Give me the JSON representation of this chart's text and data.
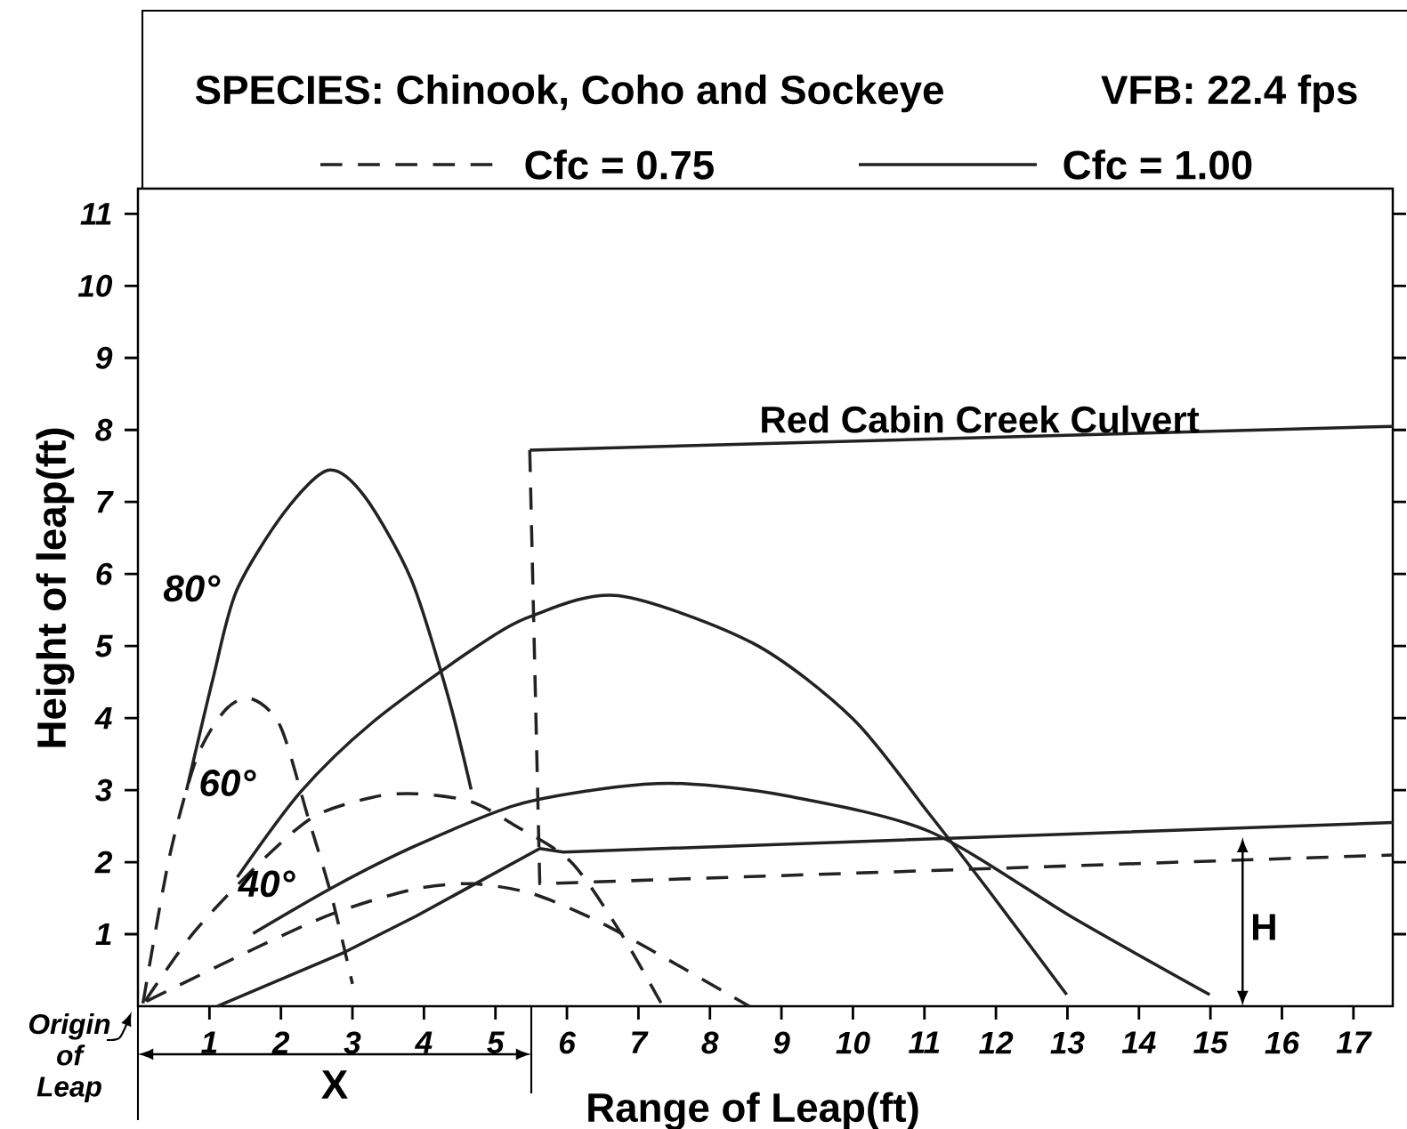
{
  "chart_data": {
    "type": "line",
    "title": "SPECIES: Chinook, Coho and Sockeye",
    "subtitle": "VFB: 22.4 fps",
    "xlabel": "Range of Leap(ft)",
    "ylabel": "Height of leap(ft)",
    "legend": "top",
    "xlim": [
      0,
      17.55
    ],
    "ylim": [
      0,
      11.35
    ],
    "xticks": [
      1,
      2,
      3,
      4,
      5,
      6,
      7,
      8,
      9,
      10,
      11,
      12,
      13,
      14,
      15,
      16,
      17
    ],
    "yticks": [
      1,
      2,
      3,
      4,
      5,
      6,
      7,
      8,
      9,
      10,
      11
    ],
    "series": [
      {
        "name": "Cfc = 0.75",
        "color": "#222222",
        "line_style": "dashed",
        "x": [
          0.07,
          0.44,
          0.82,
          1.22,
          1.58,
          1.99,
          2.38,
          2.71,
          3.0
        ],
        "values": [
          0.04,
          2.07,
          3.44,
          4.11,
          4.27,
          3.89,
          2.62,
          1.52,
          0.31
        ]
      },
      {
        "name": "Cfc = 1.00",
        "color": "#222222",
        "line_style": "solid",
        "x": [
          0.68,
          1.05,
          1.38,
          2.05,
          2.66,
          3.16,
          3.82,
          4.33,
          4.66
        ],
        "values": [
          3.0,
          4.55,
          5.77,
          6.86,
          7.44,
          7.09,
          5.93,
          4.33,
          3.01
        ]
      },
      {
        "color": "#222222",
        "line_style": "dashed",
        "x": [
          0.1,
          0.77,
          1.61,
          2.44,
          3.28,
          3.89,
          4.66,
          5.27,
          6.05,
          6.72,
          7.33
        ],
        "values": [
          0.07,
          1.01,
          1.9,
          2.62,
          2.9,
          2.95,
          2.84,
          2.51,
          2.01,
          1.07,
          0.02
        ]
      },
      {
        "color": "#222222",
        "line_style": "solid",
        "x": [
          1.39,
          2.28,
          3.28,
          4.66,
          5.49,
          6.72,
          8.6,
          10.0,
          11.06,
          11.88,
          12.99
        ],
        "values": [
          1.79,
          2.98,
          3.94,
          4.94,
          5.41,
          5.7,
          5.04,
          3.99,
          2.68,
          1.63,
          0.16
        ]
      },
      {
        "color": "#222222",
        "line_style": "dashed",
        "x": [
          0.12,
          1.61,
          2.71,
          3.84,
          4.66,
          5.49,
          6.33,
          7.16,
          8.55
        ],
        "values": [
          0.07,
          0.79,
          1.28,
          1.62,
          1.7,
          1.57,
          1.23,
          0.79,
          0.0
        ]
      },
      {
        "color": "#222222",
        "line_style": "solid",
        "x": [
          1.61,
          2.78,
          3.89,
          5.28,
          6.67,
          7.62,
          9.02,
          11.06,
          13.11,
          14.99
        ],
        "values": [
          1.01,
          1.68,
          2.23,
          2.79,
          3.04,
          3.09,
          2.93,
          2.43,
          1.21,
          0.16
        ]
      },
      {
        "color": "#222222",
        "line_style": "solid",
        "x": [
          1.11,
          2.89,
          3.89,
          5.62,
          5.95,
          17.55
        ],
        "values": [
          0.0,
          0.75,
          1.25,
          2.19,
          2.14,
          2.55
        ]
      },
      {
        "color": "#222222",
        "line_style": "solid",
        "x": [
          5.48,
          17.55
        ],
        "values": [
          7.72,
          8.05
        ]
      },
      {
        "color": "#222222",
        "line_style": "dashed",
        "x": [
          5.48,
          5.62,
          17.55
        ],
        "values": [
          7.72,
          1.7,
          2.1
        ]
      }
    ],
    "annotations": [
      "80°",
      "60°",
      "40°",
      "Red Cabin Creek Culvert",
      "H",
      "X",
      "Origin of Leap"
    ]
  }
}
